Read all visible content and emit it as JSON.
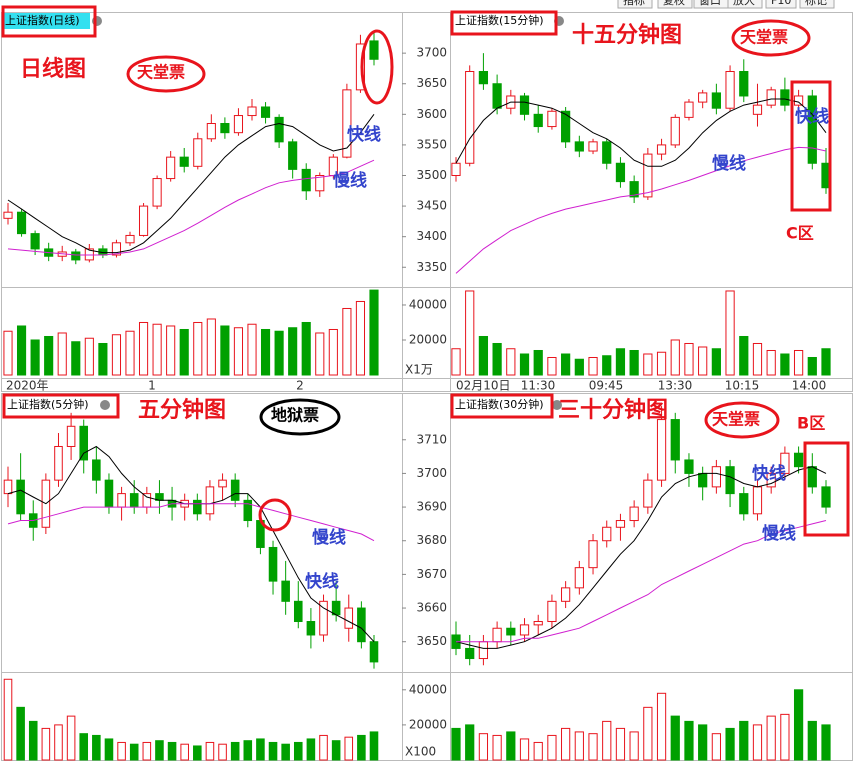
{
  "toolbar": [
    "指标",
    "复权",
    "窗口",
    "放大",
    "F10",
    "标记"
  ],
  "chart_data": [
    {
      "type": "candlestick",
      "title": "上证指数(日线)",
      "annotations": [
        "日线图",
        "天堂票",
        "快线",
        "慢线"
      ],
      "x_labels": [
        "2020年",
        "1",
        "2"
      ],
      "ylim": [
        3321,
        3764
      ],
      "yticks": [
        3350,
        3400,
        3450,
        3500,
        3550,
        3600,
        3650,
        3700
      ],
      "vol_ylim": [
        0,
        49700
      ],
      "vol_yticks": [
        20000,
        40000
      ],
      "vol_unit": "X1万",
      "ohlc": [
        [
          3430,
          3455,
          3420,
          3440
        ],
        [
          3440,
          3445,
          3400,
          3405
        ],
        [
          3405,
          3410,
          3370,
          3380
        ],
        [
          3380,
          3390,
          3360,
          3368
        ],
        [
          3368,
          3385,
          3360,
          3375
        ],
        [
          3375,
          3380,
          3355,
          3362
        ],
        [
          3362,
          3388,
          3358,
          3380
        ],
        [
          3380,
          3386,
          3365,
          3370
        ],
        [
          3370,
          3395,
          3366,
          3390
        ],
        [
          3390,
          3408,
          3385,
          3402
        ],
        [
          3402,
          3455,
          3400,
          3450
        ],
        [
          3450,
          3500,
          3445,
          3495
        ],
        [
          3495,
          3540,
          3490,
          3530
        ],
        [
          3530,
          3545,
          3505,
          3515
        ],
        [
          3515,
          3570,
          3510,
          3560
        ],
        [
          3560,
          3600,
          3555,
          3585
        ],
        [
          3585,
          3595,
          3560,
          3570
        ],
        [
          3570,
          3610,
          3565,
          3598
        ],
        [
          3598,
          3625,
          3590,
          3612
        ],
        [
          3612,
          3620,
          3585,
          3595
        ],
        [
          3595,
          3600,
          3545,
          3555
        ],
        [
          3555,
          3560,
          3495,
          3510
        ],
        [
          3510,
          3520,
          3460,
          3475
        ],
        [
          3475,
          3505,
          3465,
          3500
        ],
        [
          3500,
          3535,
          3495,
          3530
        ],
        [
          3530,
          3650,
          3528,
          3640
        ],
        [
          3640,
          3730,
          3635,
          3715
        ],
        [
          3720,
          3735,
          3680,
          3690
        ]
      ],
      "ma_fast": [
        3460,
        3445,
        3430,
        3415,
        3400,
        3390,
        3378,
        3374,
        3374,
        3378,
        3390,
        3410,
        3430,
        3455,
        3480,
        3505,
        3530,
        3550,
        3565,
        3580,
        3585,
        3580,
        3565,
        3550,
        3540,
        3545,
        3570,
        3600
      ],
      "ma_slow": [
        3380,
        3378,
        3376,
        3374,
        3372,
        3370,
        3370,
        3370,
        3372,
        3375,
        3380,
        3390,
        3400,
        3410,
        3422,
        3435,
        3448,
        3460,
        3470,
        3480,
        3488,
        3492,
        3495,
        3497,
        3500,
        3505,
        3515,
        3525
      ],
      "volume": [
        25000,
        28000,
        20000,
        22000,
        24000,
        19000,
        21000,
        18000,
        23000,
        25000,
        30000,
        29000,
        28000,
        26000,
        30000,
        32000,
        28000,
        27000,
        29000,
        26000,
        25000,
        27000,
        30000,
        24000,
        26000,
        38000,
        42000,
        48500
      ]
    },
    {
      "type": "candlestick",
      "title": "上证指数(15分钟)",
      "annotations": [
        "十五分钟图",
        "天堂票",
        "快线",
        "慢线",
        "C区"
      ],
      "x_labels": [
        "02月10日",
        "11:30",
        "09:45",
        "13:30",
        "10:15",
        "14:00"
      ],
      "ylim": [
        3321,
        3764
      ],
      "vol_ylim": [
        0,
        49700
      ],
      "ohlc": [
        [
          3500,
          3530,
          3490,
          3520
        ],
        [
          3520,
          3680,
          3515,
          3670
        ],
        [
          3670,
          3700,
          3640,
          3650
        ],
        [
          3650,
          3665,
          3600,
          3610
        ],
        [
          3610,
          3640,
          3600,
          3630
        ],
        [
          3630,
          3635,
          3590,
          3600
        ],
        [
          3600,
          3615,
          3570,
          3580
        ],
        [
          3580,
          3610,
          3575,
          3605
        ],
        [
          3605,
          3612,
          3545,
          3555
        ],
        [
          3555,
          3565,
          3530,
          3540
        ],
        [
          3540,
          3560,
          3535,
          3555
        ],
        [
          3555,
          3560,
          3510,
          3520
        ],
        [
          3520,
          3530,
          3480,
          3490
        ],
        [
          3490,
          3500,
          3455,
          3465
        ],
        [
          3465,
          3545,
          3460,
          3535
        ],
        [
          3535,
          3560,
          3525,
          3550
        ],
        [
          3550,
          3600,
          3545,
          3595
        ],
        [
          3595,
          3625,
          3590,
          3620
        ],
        [
          3620,
          3640,
          3610,
          3635
        ],
        [
          3635,
          3650,
          3600,
          3610
        ],
        [
          3610,
          3680,
          3605,
          3670
        ],
        [
          3670,
          3690,
          3620,
          3630
        ],
        [
          3600,
          3650,
          3580,
          3615
        ],
        [
          3615,
          3645,
          3610,
          3640
        ],
        [
          3640,
          3660,
          3605,
          3615
        ],
        [
          3615,
          3640,
          3600,
          3630
        ],
        [
          3630,
          3640,
          3510,
          3520
        ],
        [
          3520,
          3545,
          3470,
          3480
        ]
      ],
      "ma_fast": [
        3520,
        3560,
        3590,
        3610,
        3620,
        3620,
        3615,
        3610,
        3600,
        3585,
        3570,
        3560,
        3545,
        3525,
        3515,
        3515,
        3525,
        3545,
        3570,
        3590,
        3605,
        3615,
        3620,
        3625,
        3625,
        3620,
        3600,
        3570
      ],
      "ma_slow": [
        3340,
        3360,
        3380,
        3395,
        3410,
        3420,
        3430,
        3438,
        3445,
        3450,
        3455,
        3460,
        3465,
        3468,
        3472,
        3478,
        3485,
        3492,
        3500,
        3508,
        3516,
        3524,
        3530,
        3536,
        3542,
        3546,
        3545,
        3540
      ],
      "volume": [
        15000,
        48000,
        22000,
        18000,
        15000,
        12000,
        14000,
        10000,
        12000,
        9000,
        10000,
        11000,
        15000,
        14000,
        12000,
        13000,
        20000,
        18000,
        16000,
        15000,
        48000,
        22000,
        18000,
        14000,
        12000,
        14000,
        10000,
        15000
      ]
    },
    {
      "type": "candlestick",
      "title": "上证指数(5分钟)",
      "annotations": [
        "五分钟图",
        "地狱票",
        "慢线",
        "快线"
      ],
      "ylim": [
        3641,
        3723
      ],
      "yticks": [
        3650,
        3660,
        3670,
        3680,
        3690,
        3700,
        3710
      ],
      "vol_ylim": [
        0,
        49000
      ],
      "vol_yticks": [
        20000,
        40000
      ],
      "vol_unit": "X100",
      "ohlc": [
        [
          3694,
          3702,
          3690,
          3698
        ],
        [
          3698,
          3706,
          3686,
          3688
        ],
        [
          3688,
          3692,
          3680,
          3684
        ],
        [
          3684,
          3700,
          3682,
          3698
        ],
        [
          3698,
          3712,
          3696,
          3708
        ],
        [
          3708,
          3718,
          3704,
          3714
        ],
        [
          3714,
          3716,
          3700,
          3704
        ],
        [
          3704,
          3708,
          3694,
          3698
        ],
        [
          3698,
          3700,
          3688,
          3690
        ],
        [
          3690,
          3696,
          3686,
          3694
        ],
        [
          3694,
          3698,
          3688,
          3690
        ],
        [
          3690,
          3696,
          3688,
          3694
        ],
        [
          3694,
          3698,
          3688,
          3692
        ],
        [
          3692,
          3696,
          3686,
          3690
        ],
        [
          3690,
          3694,
          3686,
          3692
        ],
        [
          3692,
          3694,
          3686,
          3688
        ],
        [
          3688,
          3698,
          3686,
          3696
        ],
        [
          3696,
          3700,
          3692,
          3698
        ],
        [
          3698,
          3700,
          3690,
          3692
        ],
        [
          3692,
          3694,
          3684,
          3686
        ],
        [
          3686,
          3688,
          3676,
          3678
        ],
        [
          3678,
          3680,
          3664,
          3668
        ],
        [
          3668,
          3674,
          3658,
          3662
        ],
        [
          3662,
          3668,
          3654,
          3656
        ],
        [
          3656,
          3660,
          3648,
          3652
        ],
        [
          3652,
          3664,
          3650,
          3662
        ],
        [
          3662,
          3668,
          3656,
          3658
        ],
        [
          3654,
          3664,
          3650,
          3660
        ],
        [
          3660,
          3662,
          3648,
          3650
        ],
        [
          3650,
          3652,
          3642,
          3644
        ]
      ],
      "ma_fast": [
        3694,
        3695,
        3693,
        3691,
        3694,
        3700,
        3706,
        3708,
        3705,
        3700,
        3696,
        3693,
        3692,
        3692,
        3691,
        3691,
        3691,
        3692,
        3694,
        3694,
        3690,
        3683,
        3676,
        3669,
        3663,
        3660,
        3658,
        3656,
        3654,
        3650
      ],
      "ma_slow": [
        3685,
        3686,
        3686,
        3687,
        3688,
        3689,
        3690,
        3690,
        3690,
        3690,
        3690,
        3690,
        3690,
        3691,
        3691,
        3691,
        3691,
        3691,
        3691,
        3691,
        3690,
        3689,
        3688,
        3687,
        3686,
        3685,
        3684,
        3683,
        3682,
        3680
      ],
      "volume": [
        46000,
        30000,
        22000,
        18000,
        20000,
        25000,
        15000,
        14000,
        12000,
        10000,
        9000,
        10000,
        11000,
        10000,
        9000,
        8000,
        10000,
        9000,
        10000,
        11000,
        12000,
        10000,
        9000,
        10000,
        12000,
        14000,
        11000,
        13000,
        14000,
        16000
      ]
    },
    {
      "type": "candlestick",
      "title": "上证指数(30分钟)",
      "annotations": [
        "三十分钟图",
        "天堂票",
        "快线",
        "慢线",
        "B区"
      ],
      "ylim": [
        3641,
        3723
      ],
      "vol_ylim": [
        0,
        49000
      ],
      "ohlc": [
        [
          3652,
          3656,
          3646,
          3648
        ],
        [
          3648,
          3652,
          3643,
          3645
        ],
        [
          3645,
          3652,
          3643,
          3650
        ],
        [
          3650,
          3656,
          3648,
          3654
        ],
        [
          3654,
          3656,
          3649,
          3652
        ],
        [
          3652,
          3657,
          3650,
          3655
        ],
        [
          3655,
          3658,
          3652,
          3656
        ],
        [
          3656,
          3664,
          3654,
          3662
        ],
        [
          3662,
          3668,
          3660,
          3666
        ],
        [
          3666,
          3674,
          3664,
          3672
        ],
        [
          3672,
          3682,
          3670,
          3680
        ],
        [
          3680,
          3686,
          3678,
          3684
        ],
        [
          3684,
          3688,
          3680,
          3686
        ],
        [
          3686,
          3692,
          3684,
          3690
        ],
        [
          3690,
          3700,
          3688,
          3698
        ],
        [
          3698,
          3720,
          3696,
          3716
        ],
        [
          3716,
          3718,
          3700,
          3704
        ],
        [
          3704,
          3706,
          3696,
          3700
        ],
        [
          3700,
          3702,
          3692,
          3696
        ],
        [
          3696,
          3704,
          3694,
          3702
        ],
        [
          3702,
          3704,
          3690,
          3694
        ],
        [
          3694,
          3696,
          3686,
          3688
        ],
        [
          3688,
          3698,
          3686,
          3696
        ],
        [
          3696,
          3702,
          3694,
          3700
        ],
        [
          3700,
          3708,
          3698,
          3706
        ],
        [
          3706,
          3708,
          3700,
          3702
        ],
        [
          3702,
          3706,
          3694,
          3696
        ],
        [
          3696,
          3698,
          3688,
          3690
        ]
      ],
      "ma_fast": [
        3650,
        3649,
        3648,
        3648,
        3649,
        3650,
        3652,
        3654,
        3657,
        3661,
        3666,
        3671,
        3676,
        3680,
        3686,
        3693,
        3697,
        3699,
        3700,
        3700,
        3699,
        3697,
        3696,
        3697,
        3699,
        3701,
        3702,
        3700
      ],
      "ma_slow": [
        3650,
        3650,
        3650,
        3650,
        3650,
        3651,
        3651,
        3652,
        3653,
        3654,
        3656,
        3658,
        3660,
        3662,
        3664,
        3667,
        3669,
        3671,
        3673,
        3675,
        3677,
        3679,
        3680,
        3682,
        3683,
        3684,
        3685,
        3686
      ],
      "volume": [
        18000,
        20000,
        15000,
        14000,
        16000,
        12000,
        10000,
        14000,
        18000,
        16000,
        15000,
        22000,
        18000,
        16000,
        30000,
        38000,
        25000,
        22000,
        20000,
        15000,
        18000,
        22000,
        20000,
        25000,
        26000,
        40000,
        22000,
        20000
      ]
    }
  ]
}
